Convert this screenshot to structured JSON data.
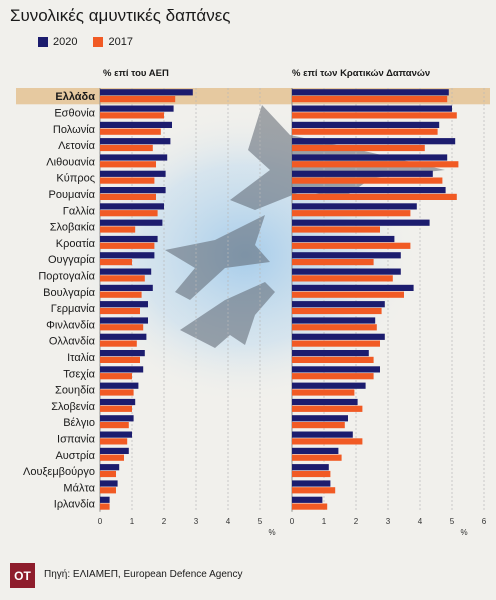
{
  "title": "Συνολικές αμυντικές δαπάνες",
  "source": "Πηγή: ΕΛΙΑΜΕΠ, European Defence Agency",
  "logo_text": "OT",
  "colors": {
    "series_2020": "#1c1c6e",
    "series_2017": "#f15a24",
    "highlight": "#e6c9a0"
  },
  "chart_data": [
    {
      "type": "bar",
      "orientation": "horizontal",
      "title": "% επί του ΑΕΠ",
      "xlabel": "%",
      "xlim": [
        0,
        6
      ],
      "xticks": [
        0,
        1,
        2,
        3,
        4,
        5
      ],
      "highlight_category": "Ελλάδα",
      "legend_position": "top-left",
      "categories": [
        "Ελλάδα",
        "Εσθονία",
        "Πολωνία",
        "Λετονία",
        "Λιθουανία",
        "Κύπρος",
        "Ρουμανία",
        "Γαλλία",
        "Σλοβακία",
        "Κροατία",
        "Ουγγαρία",
        "Πορτογαλία",
        "Βουλγαρία",
        "Γερμανία",
        "Φινλανδία",
        "Ολλανδία",
        "Ιταλία",
        "Τσεχία",
        "Σουηδία",
        "Σλοβενία",
        "Βέλγιο",
        "Ισπανία",
        "Αυστρία",
        "Λουξεμβούργο",
        "Μάλτα",
        "Ιρλανδία"
      ],
      "series": [
        {
          "name": "2020",
          "values": [
            2.9,
            2.3,
            2.25,
            2.2,
            2.1,
            2.05,
            2.05,
            2.0,
            1.95,
            1.8,
            1.7,
            1.6,
            1.65,
            1.5,
            1.5,
            1.45,
            1.4,
            1.35,
            1.2,
            1.1,
            1.05,
            1.0,
            0.9,
            0.6,
            0.55,
            0.3
          ]
        },
        {
          "name": "2017",
          "values": [
            2.35,
            2.0,
            1.9,
            1.65,
            1.75,
            1.7,
            1.75,
            1.8,
            1.1,
            1.7,
            1.0,
            1.4,
            1.3,
            1.25,
            1.35,
            1.15,
            1.25,
            1.0,
            1.05,
            1.0,
            0.9,
            0.85,
            0.75,
            0.5,
            0.5,
            0.3
          ]
        }
      ]
    },
    {
      "type": "bar",
      "orientation": "horizontal",
      "title": "% επί των Κρατικών Δαπανών",
      "xlabel": "%",
      "xlim": [
        0,
        6
      ],
      "xticks": [
        0,
        1,
        2,
        3,
        4,
        5,
        6
      ],
      "highlight_category": "Ελλάδα",
      "categories": [
        "Ελλάδα",
        "Εσθονία",
        "Πολωνία",
        "Λετονία",
        "Λιθουανία",
        "Κύπρος",
        "Ρουμανία",
        "Γαλλία",
        "Σλοβακία",
        "Κροατία",
        "Ουγγαρία",
        "Πορτογαλία",
        "Βουλγαρία",
        "Γερμανία",
        "Φινλανδία",
        "Ολλανδία",
        "Ιταλία",
        "Τσεχία",
        "Σουηδία",
        "Σλοβενία",
        "Βέλγιο",
        "Ισπανία",
        "Αυστρία",
        "Λουξεμβούργο",
        "Μάλτα",
        "Ιρλανδία"
      ],
      "series": [
        {
          "name": "2020",
          "values": [
            4.9,
            5.0,
            4.6,
            5.1,
            4.85,
            4.4,
            4.8,
            3.9,
            4.3,
            3.2,
            3.4,
            3.4,
            3.8,
            2.9,
            2.6,
            2.9,
            2.4,
            2.75,
            2.3,
            2.05,
            1.75,
            1.9,
            1.45,
            1.15,
            1.2,
            0.95
          ]
        },
        {
          "name": "2017",
          "values": [
            4.85,
            5.15,
            4.55,
            4.15,
            5.2,
            4.7,
            5.15,
            3.7,
            2.75,
            3.7,
            2.55,
            3.15,
            3.5,
            2.8,
            2.65,
            2.75,
            2.55,
            2.55,
            1.95,
            2.2,
            1.65,
            2.2,
            1.55,
            1.2,
            1.35,
            1.1
          ]
        }
      ]
    }
  ]
}
